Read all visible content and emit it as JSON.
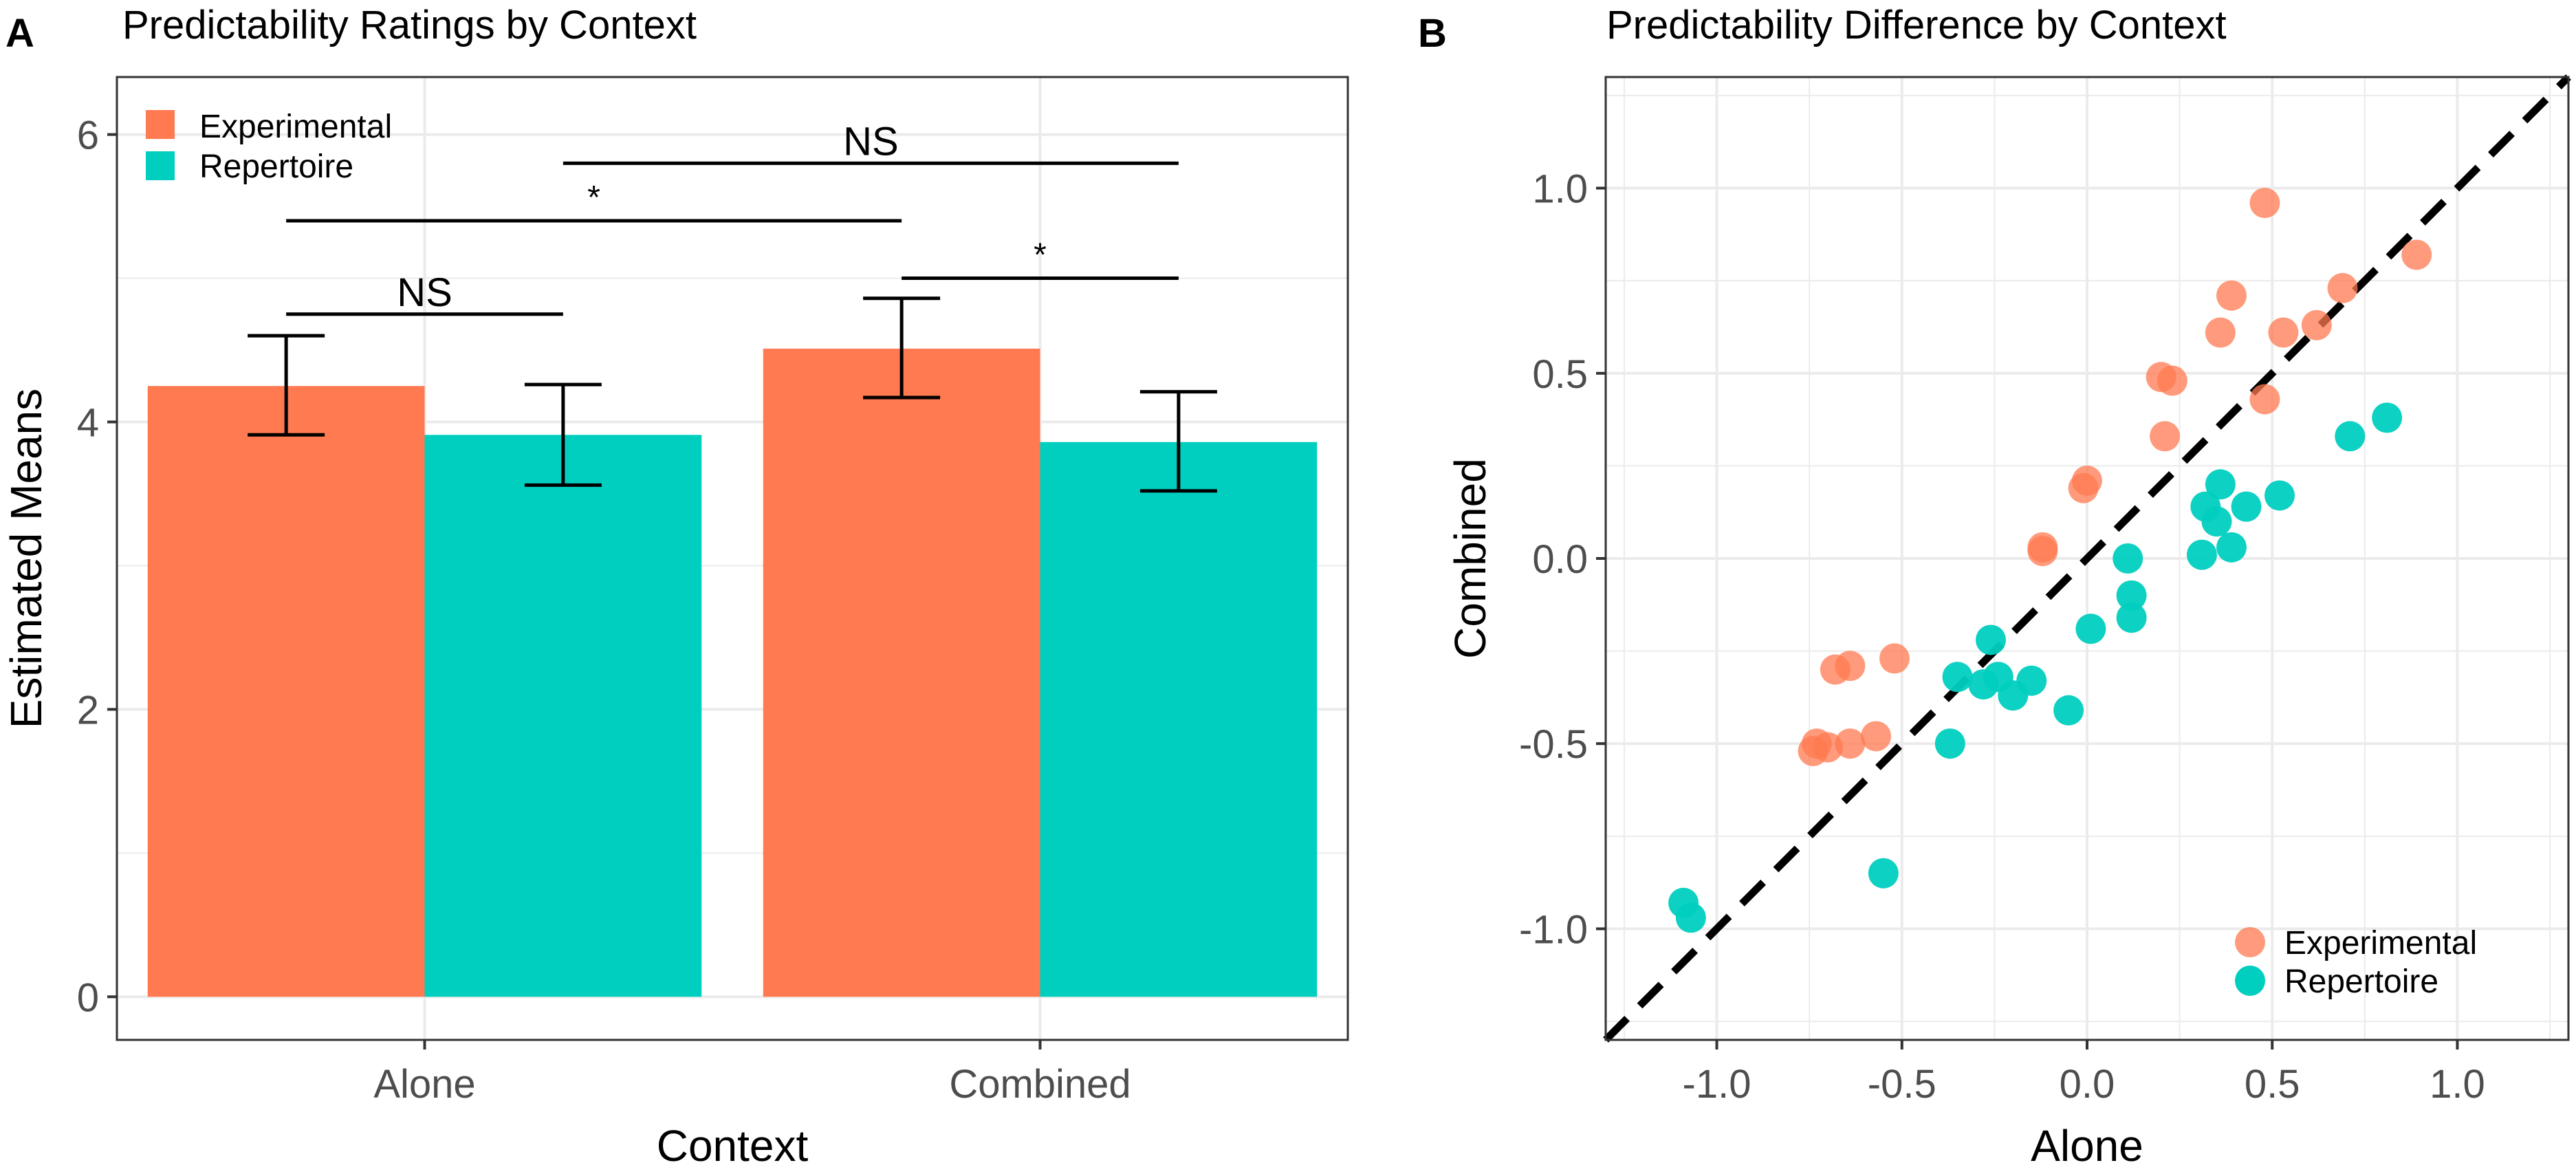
{
  "colors": {
    "experimental": "#FF7A50",
    "repertoire": "#00CFBF",
    "grid": "#EBEBEB",
    "axis_text": "#4D4D4D",
    "ink": "#000000"
  },
  "chart_data": [
    {
      "panel_label": "A",
      "type": "bar",
      "title": "Predictability Ratings by Context",
      "xlabel": "Context",
      "ylabel": "Estimated Means",
      "categories": [
        "Alone",
        "Combined"
      ],
      "series": [
        {
          "name": "Experimental",
          "color_key": "experimental",
          "values": [
            4.25,
            4.51
          ],
          "lower": [
            3.91,
            4.17
          ],
          "upper": [
            4.6,
            4.86
          ]
        },
        {
          "name": "Repertoire",
          "color_key": "repertoire",
          "values": [
            3.91,
            3.86
          ],
          "lower": [
            3.56,
            3.52
          ],
          "upper": [
            4.26,
            4.21
          ]
        }
      ],
      "ylim": [
        -0.3,
        6.4
      ],
      "yticks": [
        "0",
        "2",
        "4",
        "6"
      ],
      "legend": "top-left",
      "annotations": [
        {
          "label": "NS",
          "from_category": 0,
          "from_series": 0,
          "to_category": 0,
          "to_series": 1,
          "y": 4.75
        },
        {
          "label": "*",
          "from_category": 0,
          "from_series": 0,
          "to_category": 1,
          "to_series": 0,
          "y": 5.4
        },
        {
          "label": "NS",
          "from_category": 0,
          "from_series": 1,
          "to_category": 1,
          "to_series": 1,
          "y": 5.8
        },
        {
          "label": "*",
          "from_category": 1,
          "from_series": 0,
          "to_category": 1,
          "to_series": 1,
          "y": 5.0
        }
      ]
    },
    {
      "panel_label": "B",
      "type": "scatter",
      "title": "Predictability Difference by Context",
      "xlabel": "Alone",
      "ylabel": "Combined",
      "xlim": [
        -1.3,
        1.3
      ],
      "ylim": [
        -1.3,
        1.3
      ],
      "xticks": [
        "-1.0",
        "-0.5",
        "0.0",
        "0.5",
        "1.0"
      ],
      "yticks": [
        "-1.0",
        "-0.5",
        "0.0",
        "0.5",
        "1.0"
      ],
      "reference_line": "y = x (dashed)",
      "legend": "bottom-right",
      "series": [
        {
          "name": "Experimental",
          "color_key": "experimental",
          "points": [
            [
              0.48,
              0.96
            ],
            [
              0.89,
              0.82
            ],
            [
              0.69,
              0.73
            ],
            [
              0.62,
              0.63
            ],
            [
              0.53,
              0.61
            ],
            [
              0.39,
              0.71
            ],
            [
              0.36,
              0.61
            ],
            [
              0.48,
              0.43
            ],
            [
              0.2,
              0.49
            ],
            [
              0.23,
              0.48
            ],
            [
              0.21,
              0.33
            ],
            [
              0.0,
              0.21
            ],
            [
              -0.01,
              0.19
            ],
            [
              -0.12,
              0.03
            ],
            [
              -0.12,
              0.02
            ],
            [
              -0.52,
              -0.27
            ],
            [
              -0.64,
              -0.29
            ],
            [
              -0.68,
              -0.3
            ],
            [
              -0.57,
              -0.48
            ],
            [
              -0.64,
              -0.5
            ],
            [
              -0.73,
              -0.5
            ],
            [
              -0.7,
              -0.51
            ],
            [
              -0.74,
              -0.52
            ]
          ]
        },
        {
          "name": "Repertoire",
          "color_key": "repertoire",
          "points": [
            [
              0.81,
              0.38
            ],
            [
              0.71,
              0.33
            ],
            [
              0.52,
              0.17
            ],
            [
              0.43,
              0.14
            ],
            [
              0.36,
              0.2
            ],
            [
              0.32,
              0.14
            ],
            [
              0.35,
              0.1
            ],
            [
              0.39,
              0.03
            ],
            [
              0.31,
              0.01
            ],
            [
              0.11,
              0.0
            ],
            [
              0.12,
              -0.1
            ],
            [
              0.12,
              -0.16
            ],
            [
              0.01,
              -0.19
            ],
            [
              -0.05,
              -0.41
            ],
            [
              -0.26,
              -0.22
            ],
            [
              -0.15,
              -0.33
            ],
            [
              -0.24,
              -0.32
            ],
            [
              -0.28,
              -0.34
            ],
            [
              -0.35,
              -0.32
            ],
            [
              -0.2,
              -0.37
            ],
            [
              -0.37,
              -0.5
            ],
            [
              -0.55,
              -0.85
            ],
            [
              -1.09,
              -0.93
            ],
            [
              -1.07,
              -0.97
            ]
          ]
        }
      ]
    }
  ]
}
